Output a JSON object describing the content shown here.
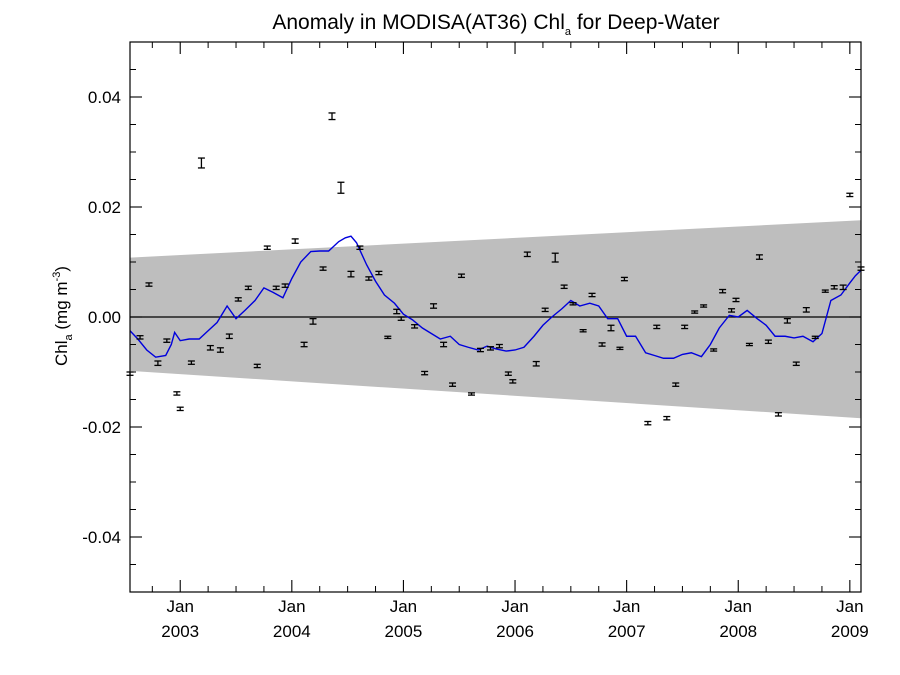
{
  "chart_data": {
    "type": "scatter",
    "title": {
      "prefix": "Anomaly in MODISA(AT36) Chl",
      "subscript": "a",
      "suffix": " for Deep-Water"
    },
    "ylabel": {
      "prefix": "Chl",
      "subscript": "a",
      "middle": " (mg m",
      "superscript": "-3",
      "suffix": ")"
    },
    "xlim": [
      2002.55,
      2009.1
    ],
    "ylim": [
      -0.05,
      0.05
    ],
    "y_ticks": [
      -0.04,
      -0.02,
      0.0,
      0.02,
      0.04
    ],
    "y_tick_labels": [
      "-0.04",
      "-0.02",
      "0.00",
      "0.02",
      "0.04"
    ],
    "x_ticks": [
      {
        "x": 2003.0,
        "month": "Jan",
        "year": "2003"
      },
      {
        "x": 2004.0,
        "month": "Jan",
        "year": "2004"
      },
      {
        "x": 2005.0,
        "month": "Jan",
        "year": "2005"
      },
      {
        "x": 2006.0,
        "month": "Jan",
        "year": "2006"
      },
      {
        "x": 2007.0,
        "month": "Jan",
        "year": "2007"
      },
      {
        "x": 2008.0,
        "month": "Jan",
        "year": "2008"
      },
      {
        "x": 2009.0,
        "month": "Jan",
        "year": "2009"
      }
    ],
    "zero_line": 0.0,
    "band": {
      "color": "#bebebe",
      "x": [
        2002.55,
        2009.1
      ],
      "upper": [
        0.0108,
        0.0176
      ],
      "lower": [
        -0.0098,
        -0.0184
      ]
    },
    "series": [
      {
        "kind": "errorbar-points",
        "color": "#000000",
        "points": [
          {
            "x": 2002.55,
            "y": -0.0103,
            "err": 0.0003
          },
          {
            "x": 2002.64,
            "y": -0.0037,
            "err": 0.0003
          },
          {
            "x": 2002.72,
            "y": 0.0059,
            "err": 0.0003
          },
          {
            "x": 2002.8,
            "y": -0.0084,
            "err": 0.0004
          },
          {
            "x": 2002.88,
            "y": -0.0043,
            "err": 0.0003
          },
          {
            "x": 2002.97,
            "y": -0.0139,
            "err": 0.0003
          },
          {
            "x": 2003.0,
            "y": -0.0167,
            "err": 0.0003
          },
          {
            "x": 2003.1,
            "y": -0.0083,
            "err": 0.0003
          },
          {
            "x": 2003.19,
            "y": 0.028,
            "err": 0.0009
          },
          {
            "x": 2003.27,
            "y": -0.0056,
            "err": 0.0004
          },
          {
            "x": 2003.36,
            "y": -0.006,
            "err": 0.0004
          },
          {
            "x": 2003.44,
            "y": -0.0035,
            "err": 0.0004
          },
          {
            "x": 2003.52,
            "y": 0.0032,
            "err": 0.0003
          },
          {
            "x": 2003.61,
            "y": 0.0053,
            "err": 0.0003
          },
          {
            "x": 2003.69,
            "y": -0.0089,
            "err": 0.0003
          },
          {
            "x": 2003.78,
            "y": 0.0126,
            "err": 0.0003
          },
          {
            "x": 2003.86,
            "y": 0.0053,
            "err": 0.0003
          },
          {
            "x": 2003.94,
            "y": 0.0057,
            "err": 0.0003
          },
          {
            "x": 2004.03,
            "y": 0.0138,
            "err": 0.0004
          },
          {
            "x": 2004.11,
            "y": -0.005,
            "err": 0.0004
          },
          {
            "x": 2004.19,
            "y": -0.0008,
            "err": 0.0005
          },
          {
            "x": 2004.28,
            "y": 0.0088,
            "err": 0.0003
          },
          {
            "x": 2004.36,
            "y": 0.0365,
            "err": 0.0006
          },
          {
            "x": 2004.44,
            "y": 0.0235,
            "err": 0.001
          },
          {
            "x": 2004.53,
            "y": 0.0078,
            "err": 0.0005
          },
          {
            "x": 2004.61,
            "y": 0.0126,
            "err": 0.0003
          },
          {
            "x": 2004.69,
            "y": 0.007,
            "err": 0.0003
          },
          {
            "x": 2004.78,
            "y": 0.008,
            "err": 0.0003
          },
          {
            "x": 2004.86,
            "y": -0.0037,
            "err": 0.0002
          },
          {
            "x": 2004.94,
            "y": 0.001,
            "err": 0.0004
          },
          {
            "x": 2004.98,
            "y": -0.0003,
            "err": 0.0003
          },
          {
            "x": 2005.1,
            "y": -0.0017,
            "err": 0.0003
          },
          {
            "x": 2005.19,
            "y": -0.0102,
            "err": 0.0003
          },
          {
            "x": 2005.27,
            "y": 0.002,
            "err": 0.0004
          },
          {
            "x": 2005.36,
            "y": -0.005,
            "err": 0.0004
          },
          {
            "x": 2005.44,
            "y": -0.0123,
            "err": 0.0003
          },
          {
            "x": 2005.52,
            "y": 0.0075,
            "err": 0.0003
          },
          {
            "x": 2005.61,
            "y": -0.014,
            "err": 0.0002
          },
          {
            "x": 2005.69,
            "y": -0.006,
            "err": 0.0003
          },
          {
            "x": 2005.78,
            "y": -0.0057,
            "err": 0.0003
          },
          {
            "x": 2005.86,
            "y": -0.0053,
            "err": 0.0003
          },
          {
            "x": 2005.94,
            "y": -0.0103,
            "err": 0.0003
          },
          {
            "x": 2005.98,
            "y": -0.0117,
            "err": 0.0003
          },
          {
            "x": 2006.11,
            "y": 0.0114,
            "err": 0.0004
          },
          {
            "x": 2006.19,
            "y": -0.0085,
            "err": 0.0004
          },
          {
            "x": 2006.27,
            "y": 0.0013,
            "err": 0.0003
          },
          {
            "x": 2006.36,
            "y": 0.0108,
            "err": 0.0008
          },
          {
            "x": 2006.44,
            "y": 0.0055,
            "err": 0.0003
          },
          {
            "x": 2006.52,
            "y": 0.0024,
            "err": 0.0002
          },
          {
            "x": 2006.61,
            "y": -0.0025,
            "err": 0.0002
          },
          {
            "x": 2006.69,
            "y": 0.004,
            "err": 0.0003
          },
          {
            "x": 2006.78,
            "y": -0.005,
            "err": 0.0003
          },
          {
            "x": 2006.86,
            "y": -0.002,
            "err": 0.0005
          },
          {
            "x": 2006.94,
            "y": -0.0057,
            "err": 0.0002
          },
          {
            "x": 2006.98,
            "y": 0.0069,
            "err": 0.0003
          },
          {
            "x": 2007.19,
            "y": -0.0193,
            "err": 0.0003
          },
          {
            "x": 2007.27,
            "y": -0.0018,
            "err": 0.0003
          },
          {
            "x": 2007.36,
            "y": -0.0184,
            "err": 0.0003
          },
          {
            "x": 2007.44,
            "y": -0.0123,
            "err": 0.0003
          },
          {
            "x": 2007.52,
            "y": -0.0018,
            "err": 0.0003
          },
          {
            "x": 2007.61,
            "y": 0.0009,
            "err": 0.0002
          },
          {
            "x": 2007.69,
            "y": 0.002,
            "err": 0.0002
          },
          {
            "x": 2007.78,
            "y": -0.006,
            "err": 0.0002
          },
          {
            "x": 2007.86,
            "y": 0.0047,
            "err": 0.0003
          },
          {
            "x": 2007.94,
            "y": 0.0012,
            "err": 0.0003
          },
          {
            "x": 2007.98,
            "y": 0.0031,
            "err": 0.0003
          },
          {
            "x": 2008.1,
            "y": -0.005,
            "err": 0.0002
          },
          {
            "x": 2008.19,
            "y": 0.0109,
            "err": 0.0004
          },
          {
            "x": 2008.27,
            "y": -0.0045,
            "err": 0.0003
          },
          {
            "x": 2008.36,
            "y": -0.0177,
            "err": 0.0003
          },
          {
            "x": 2008.44,
            "y": -0.0007,
            "err": 0.0004
          },
          {
            "x": 2008.52,
            "y": -0.0085,
            "err": 0.0003
          },
          {
            "x": 2008.61,
            "y": 0.0013,
            "err": 0.0004
          },
          {
            "x": 2008.69,
            "y": -0.0037,
            "err": 0.0002
          },
          {
            "x": 2008.78,
            "y": 0.0047,
            "err": 0.0002
          },
          {
            "x": 2008.86,
            "y": 0.0054,
            "err": 0.0003
          },
          {
            "x": 2008.94,
            "y": 0.0054,
            "err": 0.0004
          },
          {
            "x": 2009.0,
            "y": 0.0222,
            "err": 0.0003
          },
          {
            "x": 2009.1,
            "y": 0.0088,
            "err": 0.0003
          }
        ]
      },
      {
        "kind": "line",
        "color": "#0000dd",
        "x": [
          2002.55,
          2002.62,
          2002.7,
          2002.78,
          2002.87,
          2002.92,
          2002.95,
          2003.0,
          2003.08,
          2003.17,
          2003.25,
          2003.33,
          2003.42,
          2003.5,
          2003.58,
          2003.67,
          2003.75,
          2003.83,
          2003.92,
          2004.0,
          2004.08,
          2004.17,
          2004.25,
          2004.33,
          2004.42,
          2004.48,
          2004.53,
          2004.58,
          2004.67,
          2004.75,
          2004.83,
          2004.92,
          2005.0,
          2005.08,
          2005.17,
          2005.25,
          2005.33,
          2005.42,
          2005.5,
          2005.58,
          2005.67,
          2005.75,
          2005.83,
          2005.92,
          2006.0,
          2006.08,
          2006.17,
          2006.25,
          2006.33,
          2006.42,
          2006.5,
          2006.58,
          2006.67,
          2006.75,
          2006.83,
          2006.92,
          2007.0,
          2007.08,
          2007.17,
          2007.25,
          2007.33,
          2007.42,
          2007.5,
          2007.58,
          2007.67,
          2007.75,
          2007.83,
          2007.92,
          2008.0,
          2008.08,
          2008.17,
          2008.25,
          2008.33,
          2008.42,
          2008.5,
          2008.58,
          2008.67,
          2008.75,
          2008.83,
          2008.92,
          2009.0,
          2009.05,
          2009.1
        ],
        "y": [
          -0.0025,
          -0.004,
          -0.006,
          -0.0073,
          -0.007,
          -0.005,
          -0.0028,
          -0.0043,
          -0.004,
          -0.004,
          -0.0025,
          -0.001,
          0.002,
          -0.0003,
          0.0012,
          0.003,
          0.0053,
          0.0045,
          0.0035,
          0.007,
          0.01,
          0.0119,
          0.012,
          0.012,
          0.0137,
          0.0144,
          0.0147,
          0.0135,
          0.0095,
          0.0065,
          0.004,
          0.0025,
          0.0005,
          -0.0005,
          -0.002,
          -0.003,
          -0.004,
          -0.0035,
          -0.005,
          -0.0055,
          -0.006,
          -0.0053,
          -0.0058,
          -0.0062,
          -0.006,
          -0.0055,
          -0.0035,
          -0.0015,
          0.0,
          0.0015,
          0.003,
          0.002,
          0.0025,
          0.002,
          -0.0003,
          -0.0003,
          -0.0035,
          -0.0035,
          -0.0065,
          -0.007,
          -0.0075,
          -0.0075,
          -0.0068,
          -0.0065,
          -0.0072,
          -0.005,
          -0.002,
          0.0003,
          0.0,
          0.0012,
          -0.0003,
          -0.0015,
          -0.0035,
          -0.0035,
          -0.0038,
          -0.0035,
          -0.0045,
          -0.003,
          0.003,
          0.004,
          0.0062,
          0.0075,
          0.0085
        ]
      }
    ]
  }
}
